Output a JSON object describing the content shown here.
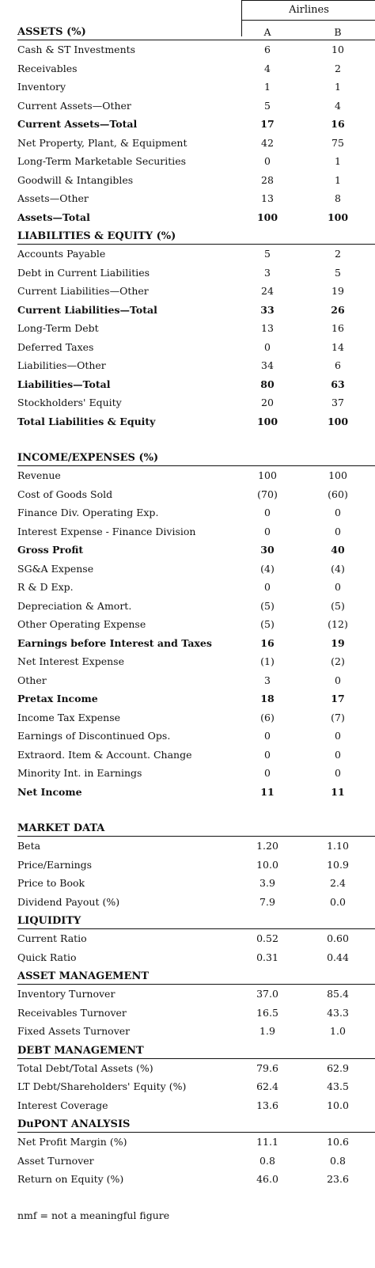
{
  "header": {
    "group_label": "Airlines",
    "col_a": "A",
    "col_b": "B"
  },
  "sections": [
    {
      "title": "ASSETS (%)",
      "show_cols": true,
      "rows": [
        {
          "label": "Cash & ST Investments",
          "a": "6",
          "b": "10",
          "bold": false
        },
        {
          "label": "Receivables",
          "a": "4",
          "b": "2",
          "bold": false
        },
        {
          "label": "Inventory",
          "a": "1",
          "b": "1",
          "bold": false
        },
        {
          "label": "Current Assets—Other",
          "a": "5",
          "b": "4",
          "bold": false
        },
        {
          "label": "Current Assets—Total",
          "a": "17",
          "b": "16",
          "bold": true
        },
        {
          "label": "Net Property, Plant, & Equipment",
          "a": "42",
          "b": "75",
          "bold": false
        },
        {
          "label": "Long-Term Marketable Securities",
          "a": "0",
          "b": "1",
          "bold": false
        },
        {
          "label": "Goodwill & Intangibles",
          "a": "28",
          "b": "1",
          "bold": false
        },
        {
          "label": "Assets—Other",
          "a": "13",
          "b": "8",
          "bold": false
        },
        {
          "label": "Assets—Total",
          "a": "100",
          "b": "100",
          "bold": true
        }
      ]
    },
    {
      "title": "LIABILITIES & EQUITY (%)",
      "rows": [
        {
          "label": "Accounts Payable",
          "a": "5",
          "b": "2",
          "bold": false
        },
        {
          "label": "Debt in Current Liabilities",
          "a": "3",
          "b": "5",
          "bold": false
        },
        {
          "label": "Current Liabilities—Other",
          "a": "24",
          "b": "19",
          "bold": false
        },
        {
          "label": "Current Liabilities—Total",
          "a": "33",
          "b": "26",
          "bold": true
        },
        {
          "label": "Long-Term Debt",
          "a": "13",
          "b": "16",
          "bold": false
        },
        {
          "label": "Deferred Taxes",
          "a": "0",
          "b": "14",
          "bold": false
        },
        {
          "label": "Liabilities—Other",
          "a": "34",
          "b": "6",
          "bold": false
        },
        {
          "label": "Liabilities—Total",
          "a": "80",
          "b": "63",
          "bold": true
        },
        {
          "label": "Stockholders' Equity",
          "a": "20",
          "b": "37",
          "bold": false
        },
        {
          "label": "Total Liabilities & Equity",
          "a": "100",
          "b": "100",
          "bold": true
        }
      ]
    },
    {
      "title": "INCOME/EXPENSES (%)",
      "gap_before": true,
      "rows": [
        {
          "label": "Revenue",
          "a": "100",
          "b": "100",
          "bold": false
        },
        {
          "label": "Cost of Goods Sold",
          "a": "(70)",
          "b": "(60)",
          "bold": false
        },
        {
          "label": "Finance Div. Operating Exp.",
          "a": "0",
          "b": "0",
          "bold": false
        },
        {
          "label": "Interest Expense - Finance Division",
          "a": "0",
          "b": "0",
          "bold": false
        },
        {
          "label": "Gross Profit",
          "a": "30",
          "b": "40",
          "bold": true
        },
        {
          "label": "SG&A Expense",
          "a": "(4)",
          "b": "(4)",
          "bold": false
        },
        {
          "label": "R & D Exp.",
          "a": "0",
          "b": "0",
          "bold": false
        },
        {
          "label": "Depreciation & Amort.",
          "a": "(5)",
          "b": "(5)",
          "bold": false
        },
        {
          "label": "Other Operating Expense",
          "a": "(5)",
          "b": "(12)",
          "bold": false
        },
        {
          "label": "Earnings before Interest and Taxes",
          "a": "16",
          "b": "19",
          "bold": true
        },
        {
          "label": "Net Interest Expense",
          "a": "(1)",
          "b": "(2)",
          "bold": false
        },
        {
          "label": "Other",
          "a": "3",
          "b": "0",
          "bold": false
        },
        {
          "label": "Pretax Income",
          "a": "18",
          "b": "17",
          "bold": true
        },
        {
          "label": "Income Tax Expense",
          "a": "(6)",
          "b": "(7)",
          "bold": false
        },
        {
          "label": "Earnings of Discontinued Ops.",
          "a": "0",
          "b": "0",
          "bold": false
        },
        {
          "label": "Extraord. Item & Account. Change",
          "a": "0",
          "b": "0",
          "bold": false
        },
        {
          "label": "Minority Int. in Earnings",
          "a": "0",
          "b": "0",
          "bold": false
        },
        {
          "label": "Net Income",
          "a": "11",
          "b": "11",
          "bold": true
        }
      ]
    },
    {
      "title": "MARKET DATA",
      "gap_before": true,
      "rows": [
        {
          "label": "Beta",
          "a": "1.20",
          "b": "1.10",
          "bold": false
        },
        {
          "label": "Price/Earnings",
          "a": "10.0",
          "b": "10.9",
          "bold": false
        },
        {
          "label": "Price to Book",
          "a": "3.9",
          "b": "2.4",
          "bold": false
        },
        {
          "label": "Dividend Payout (%)",
          "a": "7.9",
          "b": "0.0",
          "bold": false
        }
      ]
    },
    {
      "title": "LIQUIDITY",
      "rows": [
        {
          "label": "Current Ratio",
          "a": "0.52",
          "b": "0.60",
          "bold": false
        },
        {
          "label": "Quick Ratio",
          "a": "0.31",
          "b": "0.44",
          "bold": false
        }
      ]
    },
    {
      "title": "ASSET MANAGEMENT",
      "rows": [
        {
          "label": "Inventory Turnover",
          "a": "37.0",
          "b": "85.4",
          "bold": false
        },
        {
          "label": "Receivables Turnover",
          "a": "16.5",
          "b": "43.3",
          "bold": false
        },
        {
          "label": "Fixed Assets Turnover",
          "a": "1.9",
          "b": "1.0",
          "bold": false
        }
      ]
    },
    {
      "title": "DEBT MANAGEMENT",
      "rows": [
        {
          "label": "Total Debt/Total Assets (%)",
          "a": "79.6",
          "b": "62.9",
          "bold": false
        },
        {
          "label": "LT Debt/Shareholders' Equity (%)",
          "a": "62.4",
          "b": "43.5",
          "bold": false
        },
        {
          "label": "Interest Coverage",
          "a": "13.6",
          "b": "10.0",
          "bold": false
        }
      ]
    },
    {
      "title": "DuPONT ANALYSIS",
      "rows": [
        {
          "label": "Net Profit Margin (%)",
          "a": "11.1",
          "b": "10.6",
          "bold": false
        },
        {
          "label": "Asset Turnover",
          "a": "0.8",
          "b": "0.8",
          "bold": false
        },
        {
          "label": "Return on Equity (%)",
          "a": "46.0",
          "b": "23.6",
          "bold": false
        }
      ]
    }
  ],
  "footnote": "nmf = not a meaningful figure"
}
